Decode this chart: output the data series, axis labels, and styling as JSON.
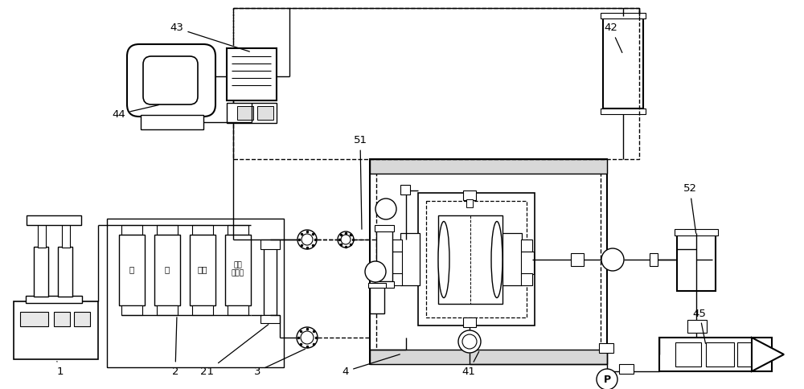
{
  "bg_color": "#ffffff",
  "lc": "#000000",
  "tank_labels": [
    "水",
    "油",
    "气体",
    "表面\n活性剂"
  ]
}
